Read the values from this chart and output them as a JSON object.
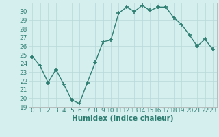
{
  "xlabel": "Humidex (Indice chaleur)",
  "x": [
    0,
    1,
    2,
    3,
    4,
    5,
    6,
    7,
    8,
    9,
    10,
    11,
    12,
    13,
    14,
    15,
    16,
    17,
    18,
    19,
    20,
    21,
    22,
    23
  ],
  "y": [
    24.8,
    23.7,
    21.8,
    23.3,
    21.6,
    19.8,
    19.4,
    21.8,
    24.1,
    26.5,
    26.7,
    29.8,
    30.5,
    30.0,
    30.7,
    30.1,
    30.5,
    30.5,
    29.3,
    28.5,
    27.3,
    26.0,
    26.8,
    25.6
  ],
  "line_color": "#2d7d70",
  "marker": "+",
  "marker_size": 4,
  "bg_color": "#d5efef",
  "grid_color": "#b8d8d8",
  "ylim": [
    19,
    31
  ],
  "xlim": [
    -0.5,
    23.5
  ],
  "yticks": [
    19,
    20,
    21,
    22,
    23,
    24,
    25,
    26,
    27,
    28,
    29,
    30
  ],
  "xticks": [
    0,
    1,
    2,
    3,
    4,
    5,
    6,
    7,
    8,
    9,
    10,
    11,
    12,
    13,
    14,
    15,
    16,
    17,
    18,
    19,
    20,
    21,
    22,
    23
  ],
  "tick_fontsize": 6.5,
  "label_fontsize": 7.5,
  "line_width": 1.0
}
